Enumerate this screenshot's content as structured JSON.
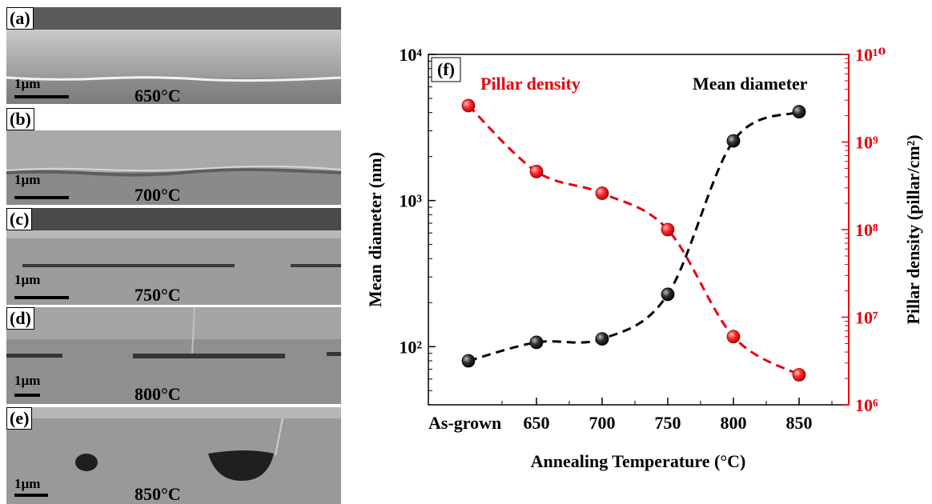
{
  "panels": [
    {
      "label": "(a)",
      "scale": "1µm",
      "temp": "650°C"
    },
    {
      "label": "(b)",
      "scale": "1µm",
      "temp": "700°C"
    },
    {
      "label": "(c)",
      "scale": "1µm",
      "temp": "750°C"
    },
    {
      "label": "(d)",
      "scale": "1µm",
      "temp": "800°C"
    },
    {
      "label": "(e)",
      "scale": "1µm",
      "temp": "850°C"
    }
  ],
  "chart_data": {
    "type": "scatter",
    "panel_label": "(f)",
    "xlabel": "Annealing Temperature (°C)",
    "ylabel_left": "Mean diameter (nm)",
    "ylabel_right": "Pillar density (pillar/cm²)",
    "x_tick_labels": [
      "As-grown",
      "650",
      "700",
      "750",
      "800",
      "850"
    ],
    "left_axis": {
      "scale": "log",
      "ylim": [
        40,
        10000
      ],
      "tick_labels": [
        "10²",
        "10³",
        "10⁴"
      ],
      "tick_values": [
        100,
        1000,
        10000
      ]
    },
    "right_axis": {
      "scale": "log",
      "ylim": [
        1000000,
        10000000000
      ],
      "tick_labels": [
        "10⁶",
        "10⁷",
        "10⁸",
        "10⁹",
        "10¹⁰"
      ],
      "tick_values": [
        1000000,
        10000000,
        100000000,
        1000000000,
        10000000000
      ]
    },
    "series": [
      {
        "name": "Mean diameter",
        "axis": "left",
        "color": "#000000",
        "values": [
          80,
          107,
          113,
          228,
          2560,
          4050
        ]
      },
      {
        "name": "Pillar density",
        "axis": "right",
        "color": "#e8000b",
        "values": [
          2600000000,
          460000000,
          260000000,
          100000000,
          6000000,
          2200000
        ]
      }
    ],
    "colors": {
      "right_axis": "#e8000b"
    }
  }
}
